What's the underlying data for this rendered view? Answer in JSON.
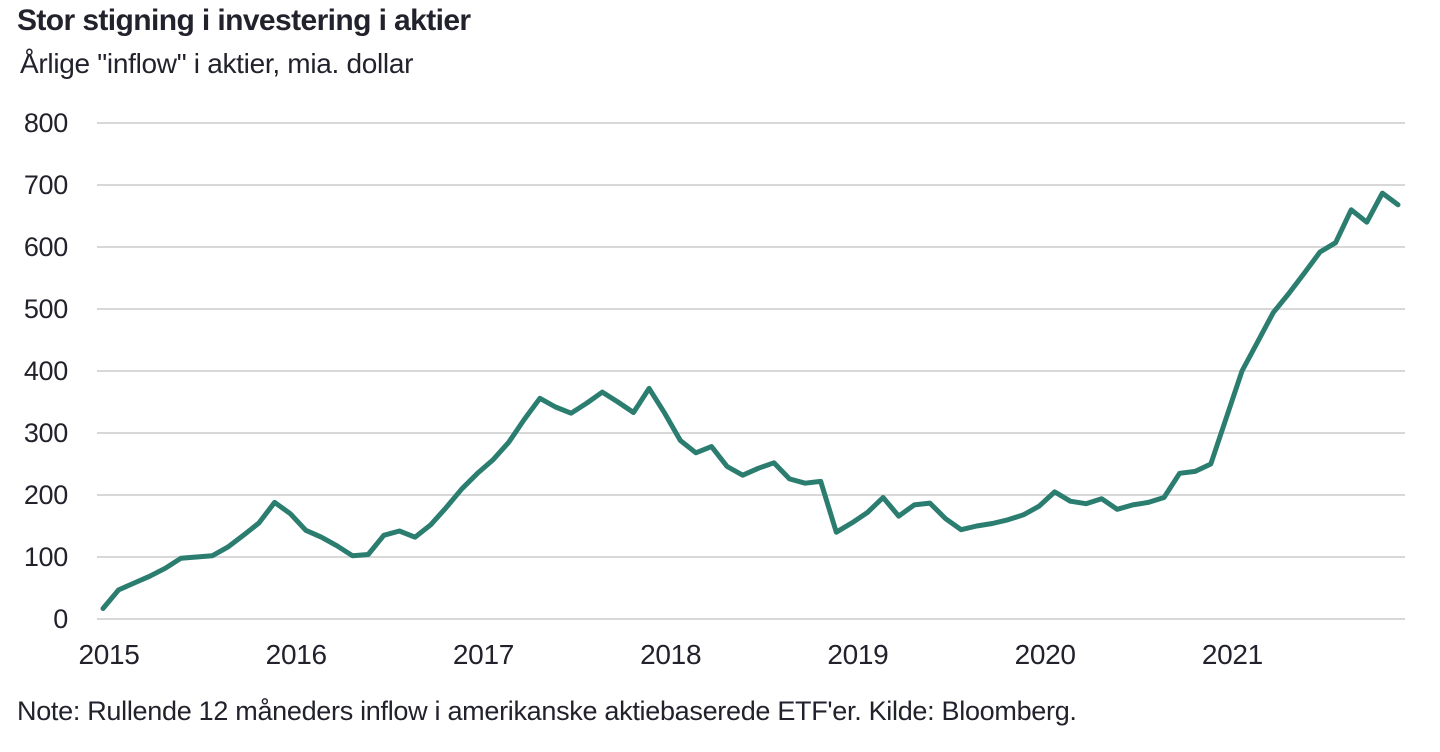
{
  "chart_data": {
    "type": "line",
    "title": "Stor stigning i investering i aktier",
    "subtitle": "Årlige \"inflow\" i aktier, mia. dollar",
    "note": "Note: Rullende 12 måneders inflow i amerikanske aktiebaserede ETF'er. Kilde: Bloomberg.",
    "x_tick_labels": [
      "2015",
      "2016",
      "2017",
      "2018",
      "2019",
      "2020",
      "2021"
    ],
    "y_ticks": [
      0,
      100,
      200,
      300,
      400,
      500,
      600,
      700,
      800
    ],
    "ylim": [
      0,
      800
    ],
    "x_range": "Jan 2015 - Dec 2021, monthly",
    "grid": "horizontal",
    "legend": "none",
    "line_color": "#2a7d6f",
    "grid_color": "#d8d8d8",
    "text_color": "#22222c",
    "series": [
      {
        "name": "Årlig (rullende 12 mdr.) inflow i aktier, mia. dollar",
        "values": [
          17,
          47,
          58,
          69,
          82,
          98,
          100,
          102,
          116,
          135,
          155,
          188,
          170,
          143,
          132,
          118,
          102,
          104,
          135,
          142,
          132,
          152,
          180,
          210,
          235,
          257,
          285,
          322,
          356,
          342,
          332,
          348,
          366,
          350,
          333,
          372,
          332,
          288,
          268,
          278,
          246,
          232,
          243,
          252,
          226,
          219,
          222,
          140,
          155,
          172,
          196,
          166,
          184,
          187,
          162,
          144,
          150,
          154,
          160,
          168,
          182,
          205,
          190,
          186,
          194,
          177,
          184,
          188,
          196,
          235,
          238,
          250,
          325,
          400,
          447,
          494,
          525,
          558,
          592,
          607,
          660,
          640,
          687,
          668
        ]
      }
    ]
  }
}
